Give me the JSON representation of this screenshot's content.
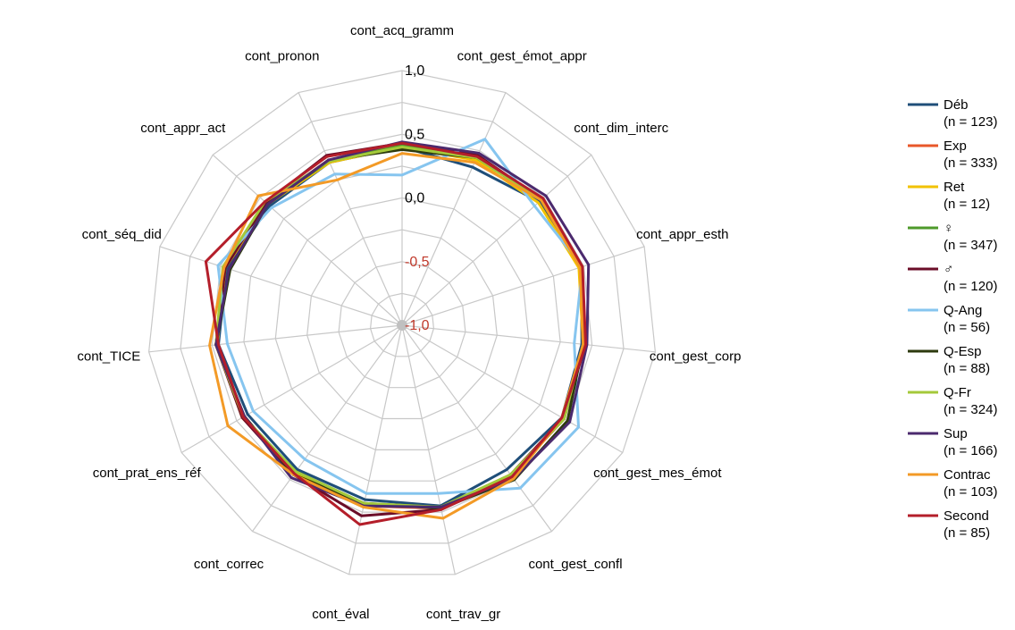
{
  "chart_data": {
    "type": "radar",
    "title": "",
    "rlim": [
      -1.0,
      1.0
    ],
    "grid": true,
    "legend_position": "right",
    "ticks": [
      {
        "value": 1.0,
        "label": "1,0",
        "color": "#000000"
      },
      {
        "value": 0.5,
        "label": "0,5",
        "color": "#000000"
      },
      {
        "value": 0.0,
        "label": "0,0",
        "color": "#000000"
      },
      {
        "value": -0.5,
        "label": "-0,5",
        "color": "#c0392b"
      },
      {
        "value": -1.0,
        "label": "-1,0",
        "color": "#c0392b"
      }
    ],
    "categories": [
      "cont_acq_gramm",
      "cont_gest_émot_appr",
      "cont_dim_interc",
      "cont_appr_esth",
      "cont_gest_corp",
      "cont_gest_mes_émot",
      "cont_gest_confl",
      "cont_trav_gr",
      "cont_éval",
      "cont_correc",
      "cont_prat_ens_réf",
      "cont_TICE",
      "cont_séq_did",
      "cont_appr_act",
      "cont_pronon"
    ],
    "series": [
      {
        "name": "Déb",
        "n": "(n = 123)",
        "color": "#1f4e79",
        "values": [
          0.4,
          0.36,
          0.45,
          0.48,
          0.42,
          0.45,
          0.4,
          0.45,
          0.4,
          0.4,
          0.4,
          0.45,
          0.45,
          0.4,
          0.4
        ]
      },
      {
        "name": "Exp",
        "n": "(n = 333)",
        "color": "#e8572a",
        "values": [
          0.42,
          0.45,
          0.47,
          0.48,
          0.44,
          0.47,
          0.46,
          0.47,
          0.45,
          0.43,
          0.45,
          0.47,
          0.47,
          0.43,
          0.42
        ]
      },
      {
        "name": "Ret",
        "n": "(n = 12)",
        "color": "#f2c200",
        "values": [
          0.4,
          0.42,
          0.44,
          0.46,
          0.43,
          0.46,
          0.45,
          0.46,
          0.44,
          0.43,
          0.45,
          0.46,
          0.46,
          0.42,
          0.4
        ]
      },
      {
        "name": "♀",
        "n": "(n = 347)",
        "color": "#4e9a2b",
        "values": [
          0.41,
          0.44,
          0.47,
          0.48,
          0.43,
          0.47,
          0.45,
          0.46,
          0.43,
          0.42,
          0.44,
          0.47,
          0.47,
          0.43,
          0.41
        ]
      },
      {
        "name": "♂",
        "n": "(n = 120)",
        "color": "#6b0d28",
        "values": [
          0.43,
          0.46,
          0.48,
          0.48,
          0.45,
          0.46,
          0.45,
          0.48,
          0.53,
          0.45,
          0.45,
          0.47,
          0.46,
          0.44,
          0.46
        ]
      },
      {
        "name": "Q-Ang",
        "n": "(n = 56)",
        "color": "#86c5ef",
        "values": [
          0.18,
          0.6,
          0.4,
          0.49,
          0.36,
          0.6,
          0.58,
          0.35,
          0.35,
          0.3,
          0.35,
          0.38,
          0.52,
          0.38,
          0.3
        ]
      },
      {
        "name": "Q-Esp",
        "n": "(n = 88)",
        "color": "#2d3a0e",
        "values": [
          0.38,
          0.44,
          0.47,
          0.48,
          0.43,
          0.5,
          0.5,
          0.47,
          0.43,
          0.45,
          0.43,
          0.47,
          0.42,
          0.42,
          0.42
        ]
      },
      {
        "name": "Q-Fr",
        "n": "(n = 324)",
        "color": "#a4c93a",
        "values": [
          0.4,
          0.44,
          0.47,
          0.49,
          0.43,
          0.47,
          0.45,
          0.46,
          0.43,
          0.42,
          0.44,
          0.47,
          0.48,
          0.45,
          0.41
        ]
      },
      {
        "name": "Sup",
        "n": "(n = 166)",
        "color": "#4b2a6e",
        "values": [
          0.44,
          0.48,
          0.52,
          0.54,
          0.46,
          0.52,
          0.49,
          0.46,
          0.45,
          0.48,
          0.43,
          0.47,
          0.43,
          0.42,
          0.42
        ]
      },
      {
        "name": "Contrac",
        "n": "(n = 103)",
        "color": "#f39a26",
        "values": [
          0.35,
          0.4,
          0.47,
          0.47,
          0.43,
          0.45,
          0.49,
          0.55,
          0.46,
          0.45,
          0.58,
          0.52,
          0.47,
          0.52,
          0.25
        ]
      },
      {
        "name": "Second",
        "n": "(n = 85)",
        "color": "#b41e2a",
        "values": [
          0.43,
          0.45,
          0.49,
          0.49,
          0.45,
          0.45,
          0.47,
          0.48,
          0.6,
          0.44,
          0.44,
          0.45,
          0.62,
          0.45,
          0.45
        ]
      }
    ]
  }
}
